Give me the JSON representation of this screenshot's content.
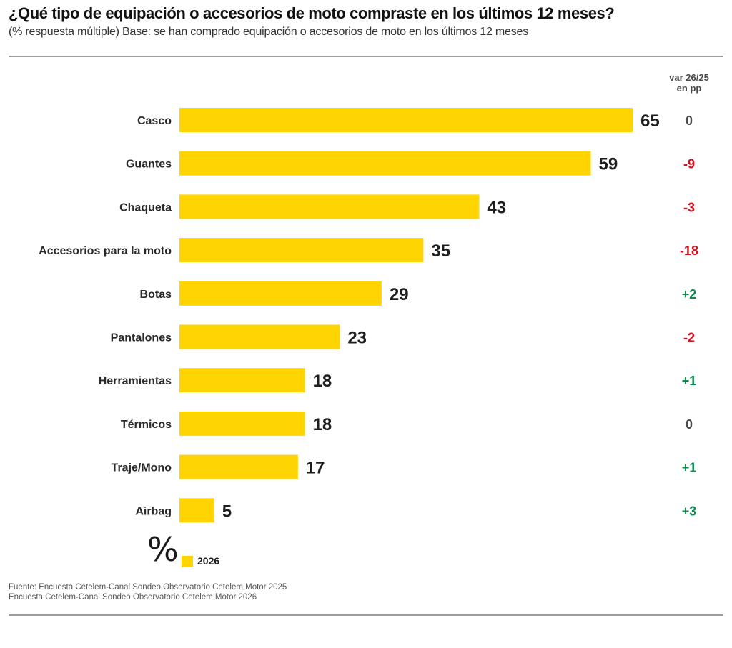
{
  "header": {
    "title": "¿Qué tipo de equipación o accesorios de moto compraste en los últimos 12 meses?",
    "subtitle": "(% respuesta múltiple) Base: se han comprado equipación o accesorios de moto en los últimos 12 meses"
  },
  "var_header": {
    "line1": "var 26/25",
    "line2": "en pp"
  },
  "legend": {
    "unit_symbol": "%",
    "series_label": "2026"
  },
  "source": {
    "line1": "Fuente: Encuesta Cetelem-Canal Sondeo Observatorio Cetelem Motor 2025",
    "line2": "Encuesta Cetelem-Canal Sondeo Observatorio Cetelem Motor 2026"
  },
  "colors": {
    "bar": "#FFD400",
    "positive": "#0f8a4f",
    "negative": "#d8101e",
    "neutral": "#4a4a4a"
  },
  "chart_data": {
    "type": "bar",
    "orientation": "horizontal",
    "title": "¿Qué tipo de equipación o accesorios de moto compraste en los últimos 12 meses?",
    "subtitle": "(% respuesta múltiple) Base: se han comprado equipación o accesorios de moto en los últimos 12 meses",
    "xlabel": "%",
    "ylabel": "",
    "xlim": [
      0,
      65
    ],
    "grid": false,
    "legend_position": "bottom-left",
    "categories": [
      "Casco",
      "Guantes",
      "Chaqueta",
      "Accesorios para la moto",
      "Botas",
      "Pantalones",
      "Herramientas",
      "Térmicos",
      "Traje/Mono",
      "Airbag"
    ],
    "series": [
      {
        "name": "2026",
        "values": [
          65,
          59,
          43,
          35,
          29,
          23,
          18,
          18,
          17,
          5
        ]
      }
    ],
    "annotations": {
      "title": "var 26/25 en pp",
      "values": [
        "0",
        "-9",
        "-3",
        "-18",
        "+2",
        "-2",
        "+1",
        "0",
        "+1",
        "+3"
      ]
    }
  }
}
